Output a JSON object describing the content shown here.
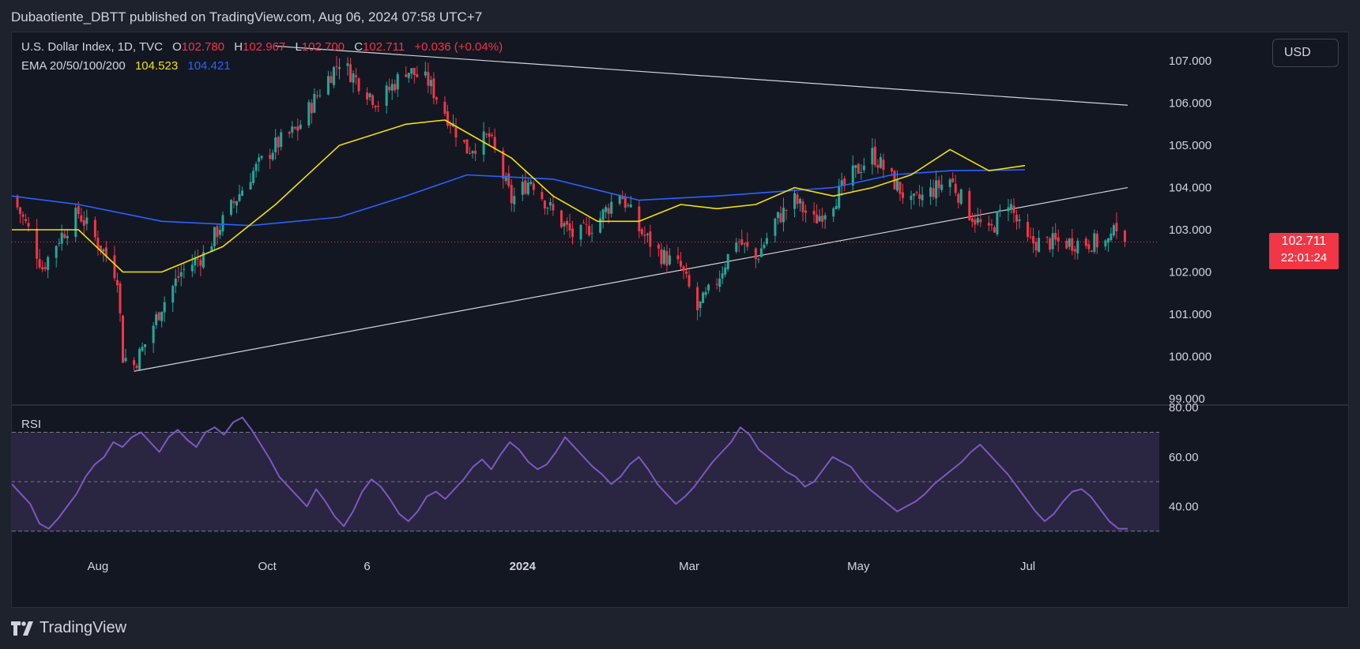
{
  "header": {
    "published_text": "Dubaotiente_DBTT published on TradingView.com, Aug 06, 2024 07:58 UTC+7"
  },
  "legend": {
    "symbol": "U.S. Dollar Index, 1D, TVC",
    "open_label": "O",
    "open": "102.780",
    "high_label": "H",
    "high": "102.967",
    "low_label": "L",
    "low": "102.700",
    "close_label": "C",
    "close": "102.711",
    "change": "+0.036 (+0.04%)",
    "ema_label": "EMA 20/50/100/200",
    "ema_value_1": "104.523",
    "ema_value_2": "104.421"
  },
  "currency_button": "USD",
  "price_tag": {
    "price": "102.711",
    "countdown": "22:01:24"
  },
  "rsi_label": "RSI",
  "logo_text": "TradingView",
  "colors": {
    "up": "#26a69a",
    "down": "#f23645",
    "ema_fast": "#f5e000",
    "ema_slow": "#2962ff",
    "rsi_line": "#7e57c2",
    "rsi_band": "#2a2540",
    "trendline": "#d1d4dc",
    "background": "#131722"
  },
  "chart_data": [
    {
      "type": "candlestick",
      "title": "U.S. Dollar Index, 1D, TVC",
      "y_ticks": [
        "107.000",
        "106.000",
        "105.000",
        "104.000",
        "103.000",
        "102.000",
        "101.000",
        "100.000",
        "99.000"
      ],
      "ylim": [
        99.0,
        107.6
      ],
      "x_ticks": [
        "Aug",
        "Oct",
        "6",
        "2024",
        "Mar",
        "May",
        "Jul"
      ],
      "x_range": [
        "2023-07-01",
        "2024-08-06"
      ],
      "last_price": 102.711,
      "close_path": [
        {
          "date": "2023-07-01",
          "v": 103.8
        },
        {
          "date": "2023-07-07",
          "v": 103.0
        },
        {
          "date": "2023-07-12",
          "v": 102.1
        },
        {
          "date": "2023-07-18",
          "v": 102.8
        },
        {
          "date": "2023-07-25",
          "v": 103.4
        },
        {
          "date": "2023-08-03",
          "v": 102.5
        },
        {
          "date": "2023-08-08",
          "v": 101.9
        },
        {
          "date": "2023-08-10",
          "v": 100.0
        },
        {
          "date": "2023-08-14",
          "v": 99.8
        },
        {
          "date": "2023-08-18",
          "v": 100.3
        },
        {
          "date": "2023-08-24",
          "v": 101.2
        },
        {
          "date": "2023-08-31",
          "v": 102.0
        },
        {
          "date": "2023-09-08",
          "v": 102.4
        },
        {
          "date": "2023-09-15",
          "v": 103.2
        },
        {
          "date": "2023-09-25",
          "v": 104.3
        },
        {
          "date": "2023-10-04",
          "v": 105.0
        },
        {
          "date": "2023-10-12",
          "v": 105.4
        },
        {
          "date": "2023-10-20",
          "v": 106.3
        },
        {
          "date": "2023-10-27",
          "v": 107.0
        },
        {
          "date": "2023-11-03",
          "v": 106.5
        },
        {
          "date": "2023-11-10",
          "v": 106.0
        },
        {
          "date": "2023-11-20",
          "v": 106.8
        },
        {
          "date": "2023-11-28",
          "v": 106.5
        },
        {
          "date": "2023-12-04",
          "v": 105.8
        },
        {
          "date": "2023-12-12",
          "v": 104.9
        },
        {
          "date": "2023-12-20",
          "v": 105.2
        },
        {
          "date": "2023-12-28",
          "v": 103.7
        },
        {
          "date": "2024-01-04",
          "v": 104.2
        },
        {
          "date": "2024-01-12",
          "v": 103.4
        },
        {
          "date": "2024-01-20",
          "v": 102.8
        },
        {
          "date": "2024-01-28",
          "v": 103.2
        },
        {
          "date": "2024-02-05",
          "v": 103.9
        },
        {
          "date": "2024-02-12",
          "v": 103.0
        },
        {
          "date": "2024-02-20",
          "v": 102.4
        },
        {
          "date": "2024-02-27",
          "v": 102.1
        },
        {
          "date": "2024-03-04",
          "v": 101.1
        },
        {
          "date": "2024-03-11",
          "v": 101.8
        },
        {
          "date": "2024-03-18",
          "v": 102.8
        },
        {
          "date": "2024-03-25",
          "v": 102.3
        },
        {
          "date": "2024-04-01",
          "v": 103.2
        },
        {
          "date": "2024-04-08",
          "v": 103.7
        },
        {
          "date": "2024-04-15",
          "v": 103.2
        },
        {
          "date": "2024-04-22",
          "v": 103.7
        },
        {
          "date": "2024-04-29",
          "v": 104.3
        },
        {
          "date": "2024-05-06",
          "v": 104.8
        },
        {
          "date": "2024-05-13",
          "v": 104.2
        },
        {
          "date": "2024-05-20",
          "v": 103.6
        },
        {
          "date": "2024-05-27",
          "v": 103.9
        },
        {
          "date": "2024-06-03",
          "v": 104.2
        },
        {
          "date": "2024-06-10",
          "v": 103.4
        },
        {
          "date": "2024-06-17",
          "v": 102.9
        },
        {
          "date": "2024-06-24",
          "v": 103.7
        },
        {
          "date": "2024-06-30",
          "v": 102.7
        }
      ],
      "ema_fast_path": [
        {
          "date": "2023-07-01",
          "v": 103.0
        },
        {
          "date": "2023-07-25",
          "v": 103.0
        },
        {
          "date": "2023-08-10",
          "v": 102.0
        },
        {
          "date": "2023-08-24",
          "v": 102.0
        },
        {
          "date": "2023-09-15",
          "v": 102.6
        },
        {
          "date": "2023-10-04",
          "v": 103.6
        },
        {
          "date": "2023-10-27",
          "v": 105.0
        },
        {
          "date": "2023-11-20",
          "v": 105.5
        },
        {
          "date": "2023-12-04",
          "v": 105.6
        },
        {
          "date": "2023-12-28",
          "v": 104.7
        },
        {
          "date": "2024-01-12",
          "v": 103.8
        },
        {
          "date": "2024-01-28",
          "v": 103.2
        },
        {
          "date": "2024-02-12",
          "v": 103.2
        },
        {
          "date": "2024-02-27",
          "v": 103.6
        },
        {
          "date": "2024-03-11",
          "v": 103.5
        },
        {
          "date": "2024-03-25",
          "v": 103.6
        },
        {
          "date": "2024-04-08",
          "v": 104.0
        },
        {
          "date": "2024-04-22",
          "v": 103.8
        },
        {
          "date": "2024-05-06",
          "v": 104.0
        },
        {
          "date": "2024-05-20",
          "v": 104.3
        },
        {
          "date": "2024-06-03",
          "v": 104.9
        },
        {
          "date": "2024-06-17",
          "v": 104.4
        },
        {
          "date": "2024-06-30",
          "v": 104.52
        }
      ],
      "ema_slow_path": [
        {
          "date": "2023-07-01",
          "v": 103.8
        },
        {
          "date": "2023-07-25",
          "v": 103.6
        },
        {
          "date": "2023-08-24",
          "v": 103.2
        },
        {
          "date": "2023-09-25",
          "v": 103.1
        },
        {
          "date": "2023-10-27",
          "v": 103.3
        },
        {
          "date": "2023-11-20",
          "v": 103.8
        },
        {
          "date": "2023-12-12",
          "v": 104.3
        },
        {
          "date": "2024-01-12",
          "v": 104.2
        },
        {
          "date": "2024-02-12",
          "v": 103.7
        },
        {
          "date": "2024-03-11",
          "v": 103.8
        },
        {
          "date": "2024-04-01",
          "v": 103.9
        },
        {
          "date": "2024-04-22",
          "v": 104.0
        },
        {
          "date": "2024-05-13",
          "v": 104.3
        },
        {
          "date": "2024-06-03",
          "v": 104.4
        },
        {
          "date": "2024-06-30",
          "v": 104.42
        }
      ],
      "trendlines": [
        {
          "from": {
            "date": "2023-08-14",
            "v": 99.65
          },
          "to": {
            "date": "2024-08-06",
            "v": 104.0
          }
        },
        {
          "from": {
            "date": "2023-10-04",
            "v": 107.35
          },
          "to": {
            "date": "2024-08-06",
            "v": 105.95
          }
        }
      ]
    },
    {
      "type": "line",
      "title": "RSI",
      "y_ticks": [
        "80.00",
        "60.00",
        "40.00"
      ],
      "ylim": [
        28,
        81
      ],
      "bands": [
        30,
        50,
        70
      ],
      "series": [
        {
          "values": [
            49,
            45,
            41,
            33,
            31,
            35,
            40,
            45,
            52,
            57,
            60,
            66,
            64,
            68,
            70,
            66,
            62,
            68,
            71,
            67,
            64,
            70,
            72,
            69,
            74,
            76,
            71,
            65,
            59,
            52,
            48,
            44,
            40,
            47,
            42,
            36,
            32,
            38,
            46,
            51,
            48,
            43,
            37,
            34,
            38,
            44,
            46,
            43,
            47,
            51,
            56,
            59,
            55,
            61,
            66,
            63,
            58,
            55,
            57,
            62,
            68,
            64,
            60,
            56,
            53,
            49,
            52,
            57,
            60,
            55,
            49,
            45,
            41,
            44,
            48,
            53,
            58,
            62,
            66,
            72,
            69,
            63,
            60,
            57,
            54,
            52,
            48,
            50,
            55,
            60,
            58,
            56,
            51,
            47,
            44,
            41,
            38,
            40,
            42,
            45,
            49,
            52,
            55,
            58,
            62,
            65,
            61,
            57,
            53,
            48,
            43,
            38,
            34,
            37,
            42,
            46,
            47,
            44,
            39,
            34,
            31,
            31
          ]
        }
      ]
    }
  ]
}
